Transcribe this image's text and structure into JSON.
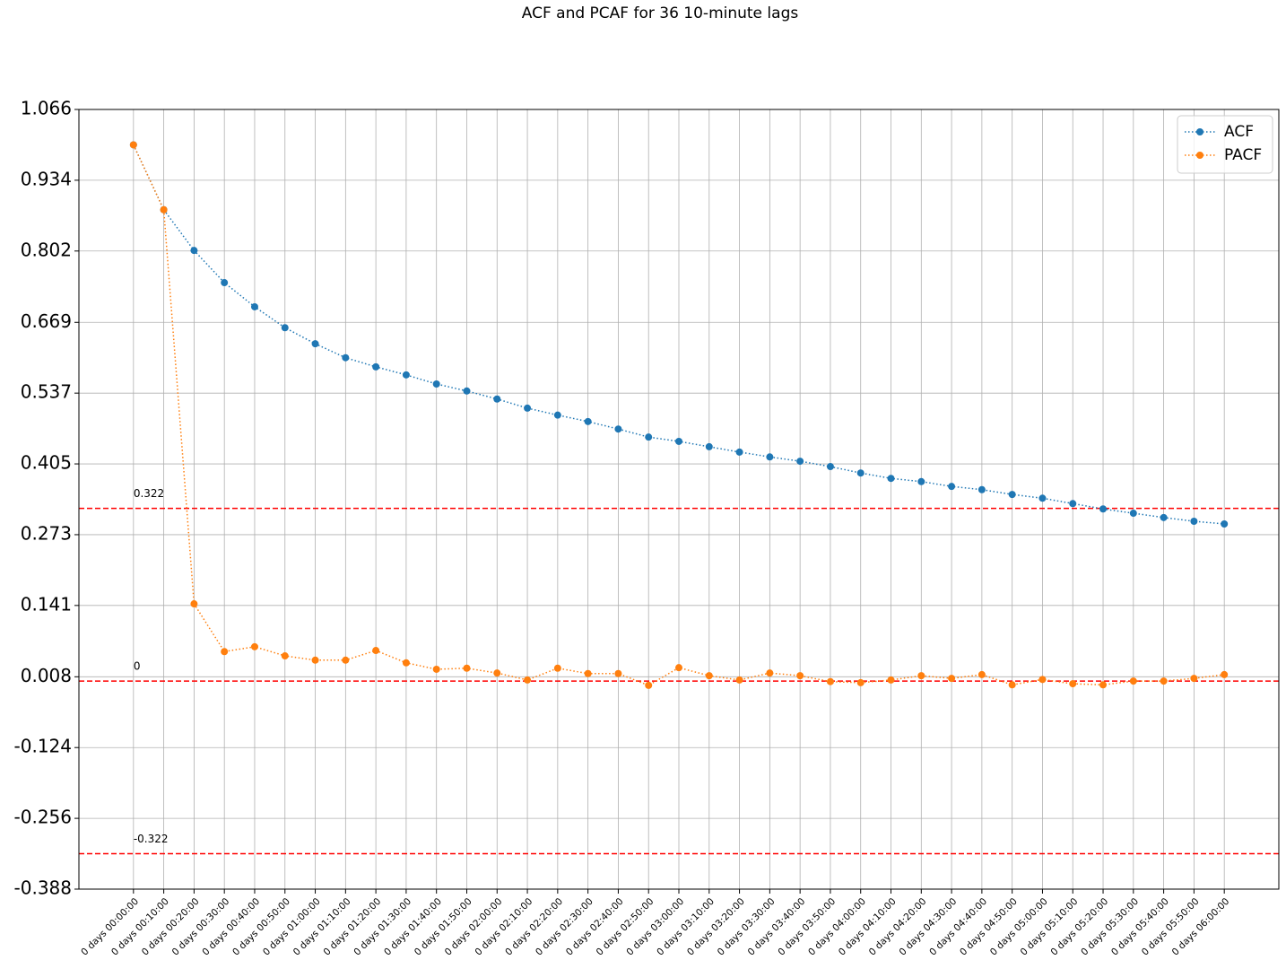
{
  "chart_data": {
    "type": "line",
    "title": "ACF and PCAF for 36 10-minute lags",
    "categories": [
      "0 days 00:00:00",
      "0 days 00:10:00",
      "0 days 00:20:00",
      "0 days 00:30:00",
      "0 days 00:40:00",
      "0 days 00:50:00",
      "0 days 01:00:00",
      "0 days 01:10:00",
      "0 days 01:20:00",
      "0 days 01:30:00",
      "0 days 01:40:00",
      "0 days 01:50:00",
      "0 days 02:00:00",
      "0 days 02:10:00",
      "0 days 02:20:00",
      "0 days 02:30:00",
      "0 days 02:40:00",
      "0 days 02:50:00",
      "0 days 03:00:00",
      "0 days 03:10:00",
      "0 days 03:20:00",
      "0 days 03:30:00",
      "0 days 03:40:00",
      "0 days 03:50:00",
      "0 days 04:00:00",
      "0 days 04:10:00",
      "0 days 04:20:00",
      "0 days 04:30:00",
      "0 days 04:40:00",
      "0 days 04:50:00",
      "0 days 05:00:00",
      "0 days 05:10:00",
      "0 days 05:20:00",
      "0 days 05:30:00",
      "0 days 05:40:00",
      "0 days 05:50:00",
      "0 days 06:00:00"
    ],
    "series": [
      {
        "name": "ACF",
        "color": "#1f77b4",
        "values": [
          1.0,
          0.879,
          0.803,
          0.743,
          0.698,
          0.659,
          0.629,
          0.603,
          0.586,
          0.571,
          0.554,
          0.541,
          0.526,
          0.509,
          0.496,
          0.484,
          0.47,
          0.455,
          0.447,
          0.437,
          0.427,
          0.418,
          0.41,
          0.4,
          0.388,
          0.378,
          0.372,
          0.363,
          0.357,
          0.348,
          0.341,
          0.331,
          0.321,
          0.313,
          0.305,
          0.298,
          0.293
        ]
      },
      {
        "name": "PACF",
        "color": "#ff7f0e",
        "values": [
          1.0,
          0.879,
          0.144,
          0.055,
          0.064,
          0.047,
          0.039,
          0.039,
          0.057,
          0.034,
          0.022,
          0.024,
          0.015,
          0.002,
          0.024,
          0.014,
          0.014,
          -0.008,
          0.025,
          0.01,
          0.002,
          0.015,
          0.01,
          -0.001,
          -0.003,
          0.002,
          0.01,
          0.005,
          0.012,
          -0.007,
          0.003,
          -0.005,
          -0.007,
          0.0,
          0.0,
          0.005,
          0.012
        ]
      }
    ],
    "hlines": [
      0.322,
      0,
      -0.322
    ],
    "hline_color": "red",
    "ylim": [
      -0.388,
      1.066
    ],
    "yticks": [
      -0.388,
      -0.256,
      -0.124,
      0.008,
      0.141,
      0.273,
      0.405,
      0.537,
      0.669,
      0.802,
      0.934,
      1.066
    ],
    "grid": true,
    "legend": "upper right"
  }
}
